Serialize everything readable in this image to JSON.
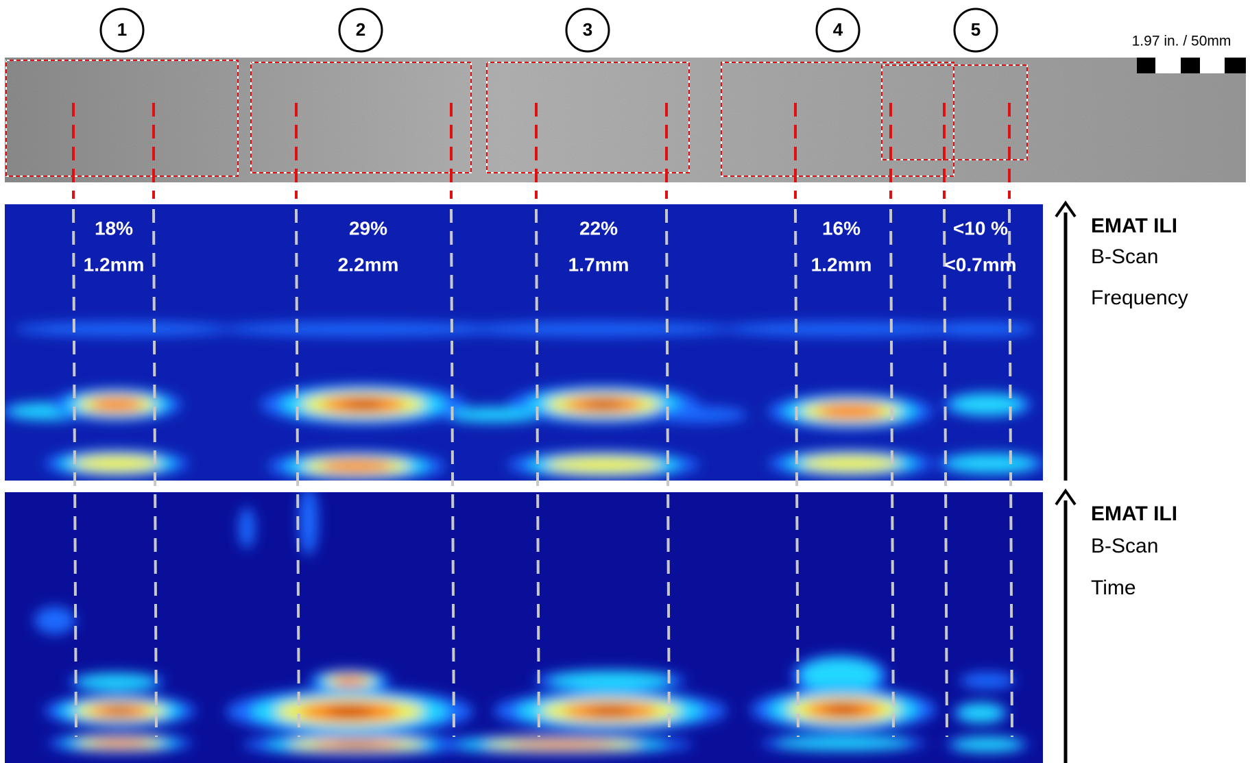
{
  "markers": [
    "1",
    "2",
    "3",
    "4",
    "5"
  ],
  "scale": {
    "label": "1.97 in. / 50mm"
  },
  "defects": [
    {
      "depth_percent": "18%",
      "depth_mm": "1.2mm"
    },
    {
      "depth_percent": "29%",
      "depth_mm": "2.2mm"
    },
    {
      "depth_percent": "22%",
      "depth_mm": "1.7mm"
    },
    {
      "depth_percent": "16%",
      "depth_mm": "1.2mm"
    },
    {
      "depth_percent": "<10 %",
      "depth_mm": "<0.7mm"
    }
  ],
  "panels": [
    {
      "title": "EMAT ILI",
      "subtitle": "B-Scan",
      "domain": "Frequency"
    },
    {
      "title": "EMAT ILI",
      "subtitle": "B-Scan",
      "domain": "Time"
    }
  ]
}
